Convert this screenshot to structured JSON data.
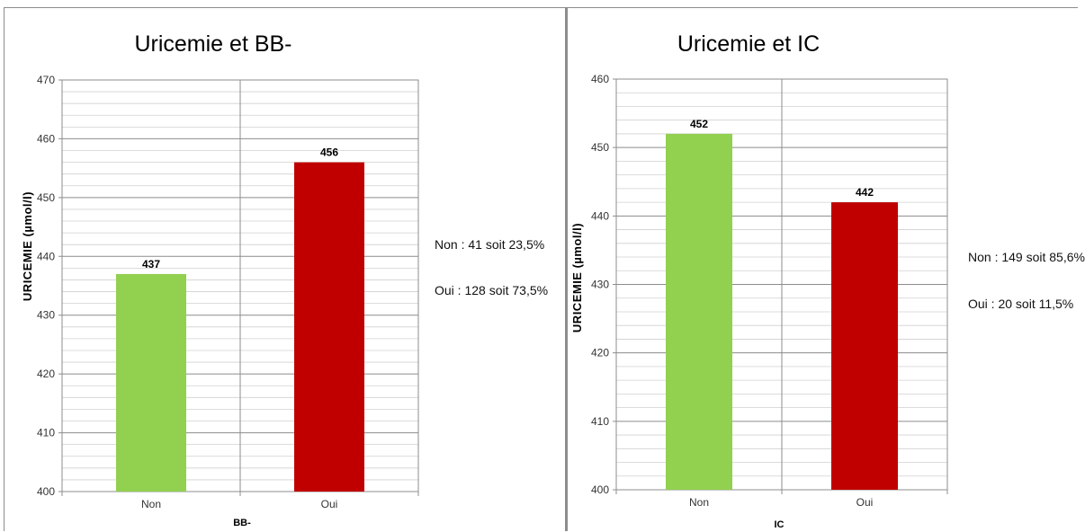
{
  "chart_data": [
    {
      "type": "bar",
      "title": "Uricemie  et  BB-",
      "xlabel": "BB-",
      "ylabel": "URICEMIE  (µmol/l)",
      "categories": [
        "Non",
        "Oui"
      ],
      "values": [
        437,
        456
      ],
      "data_labels": [
        "437",
        "456"
      ],
      "colors": [
        "#92d050",
        "#c00000"
      ],
      "ylim": [
        400,
        470
      ],
      "y_major_step": 10,
      "y_minor_step": 2,
      "yticks": [
        "400",
        "410",
        "420",
        "430",
        "440",
        "450",
        "460",
        "470"
      ],
      "grid": true,
      "notes": [
        "Non : 41 soit 23,5%",
        "Oui : 128 soit 73,5%"
      ]
    },
    {
      "type": "bar",
      "title": "Uricemie et IC",
      "xlabel": "IC",
      "ylabel": "URICEMIE  (µmol/l)",
      "categories": [
        "Non",
        "Oui"
      ],
      "values": [
        452,
        442
      ],
      "data_labels": [
        "452",
        "442"
      ],
      "colors": [
        "#92d050",
        "#c00000"
      ],
      "ylim": [
        400,
        460
      ],
      "y_major_step": 10,
      "y_minor_step": 2,
      "yticks": [
        "400",
        "410",
        "420",
        "430",
        "440",
        "450",
        "460"
      ],
      "grid": true,
      "notes": [
        "Non : 149 soit  85,6%",
        "Oui : 20 soit 11,5%"
      ]
    }
  ]
}
